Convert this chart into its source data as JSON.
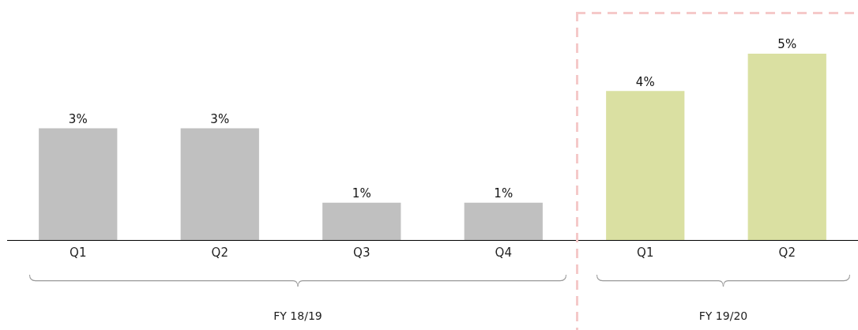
{
  "chart_data": {
    "type": "bar",
    "categories": [
      "Q1",
      "Q2",
      "Q3",
      "Q4",
      "Q1",
      "Q2"
    ],
    "values": [
      3,
      3,
      1,
      1,
      4,
      5
    ],
    "value_labels": [
      "3%",
      "3%",
      "1%",
      "1%",
      "4%",
      "5%"
    ],
    "colors": [
      "#c0c0c0",
      "#c0c0c0",
      "#c0c0c0",
      "#c0c0c0",
      "#dae0a2",
      "#dae0a2"
    ],
    "annotations": [
      "FY 18/19",
      "FY 19/20"
    ],
    "grid": false,
    "legend": false
  }
}
